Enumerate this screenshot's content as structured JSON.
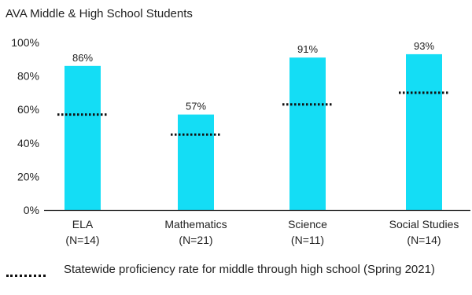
{
  "chart_data": {
    "type": "bar",
    "title": "AVA Middle & High School Students",
    "categories": [
      "ELA",
      "Mathematics",
      "Science",
      "Social Studies"
    ],
    "category_counts": [
      "(N=14)",
      "(N=21)",
      "(N=11)",
      "(N=14)"
    ],
    "series": [
      {
        "values": [
          86,
          57,
          91,
          93
        ],
        "value_labels": [
          "86%",
          "57%",
          "91%",
          "93%"
        ]
      }
    ],
    "reference_lines": {
      "name": "Statewide proficiency rate for middle through high school (Spring 2021)",
      "values": [
        57,
        45,
        63,
        70
      ]
    },
    "ylim": [
      0,
      100
    ],
    "yticks": [
      0,
      20,
      40,
      60,
      80,
      100
    ],
    "ytick_labels": [
      "0%",
      "20%",
      "40%",
      "60%",
      "80%",
      "100%"
    ],
    "xlabel": "",
    "ylabel": "",
    "grid": false,
    "legend_position": "bottom"
  },
  "colors": {
    "bar": "#14DDF5",
    "reference_line": "#111111",
    "axis": "#222222"
  }
}
